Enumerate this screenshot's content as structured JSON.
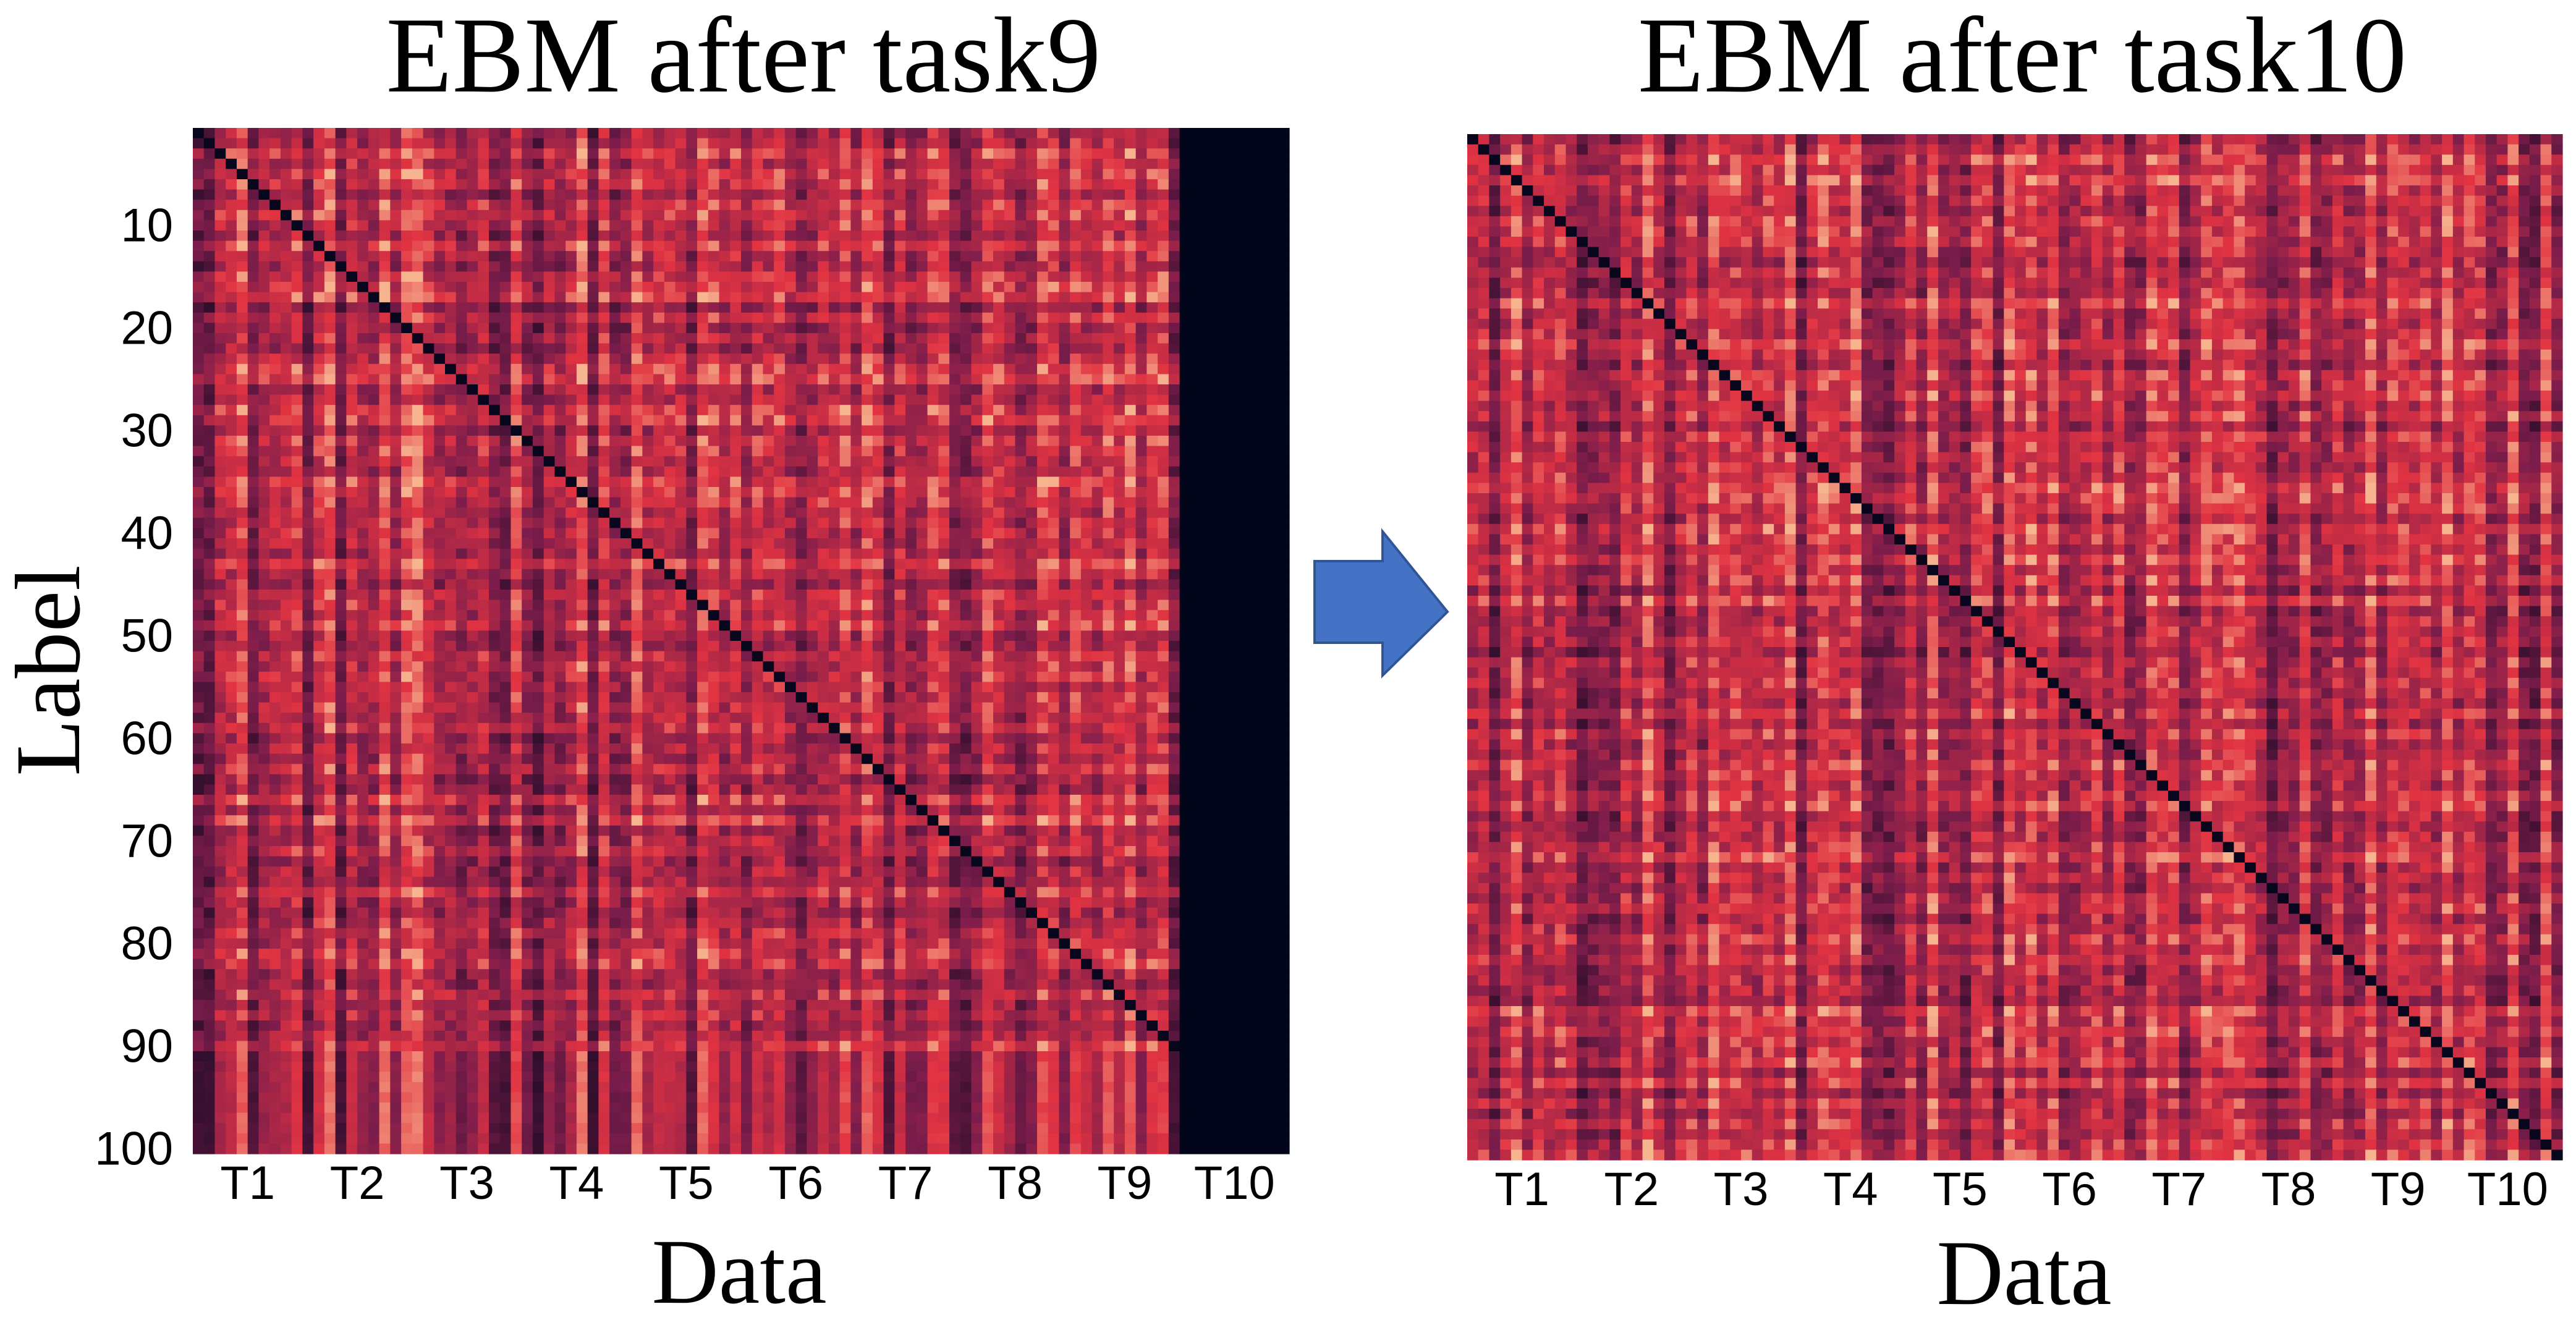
{
  "colors": {
    "background": "#ffffff",
    "arrow": "#4472c4",
    "arrow_stroke": "#2f5597",
    "heat_dark": "#03051a",
    "heat_mid": "#7c1d4b",
    "heat_hot": "#e13342",
    "heat_light": "#f6b48f"
  },
  "arrow": {
    "icon": "right-arrow-icon"
  },
  "chart_data": [
    {
      "type": "heatmap",
      "title": "EBM after task9",
      "xlabel": "Data",
      "ylabel": "Label",
      "y_ticks": [
        "10",
        "20",
        "30",
        "40",
        "50",
        "60",
        "70",
        "80",
        "90",
        "100"
      ],
      "y_tick_values": [
        10,
        20,
        30,
        40,
        50,
        60,
        70,
        80,
        90,
        100
      ],
      "x_ticks": [
        "T1",
        "T2",
        "T3",
        "T4",
        "T5",
        "T6",
        "T7",
        "T8",
        "T9",
        "T10"
      ],
      "size": [
        100,
        100
      ],
      "trained_classes": 90,
      "grid": false
    },
    {
      "type": "heatmap",
      "title": "EBM after task10",
      "xlabel": "Data",
      "ylabel": "",
      "y_ticks": [],
      "x_ticks": [
        "T1",
        "T2",
        "T3",
        "T4",
        "T5",
        "T6",
        "T7",
        "T8",
        "T9",
        "T10"
      ],
      "size": [
        100,
        100
      ],
      "trained_classes": 100,
      "grid": false
    }
  ]
}
